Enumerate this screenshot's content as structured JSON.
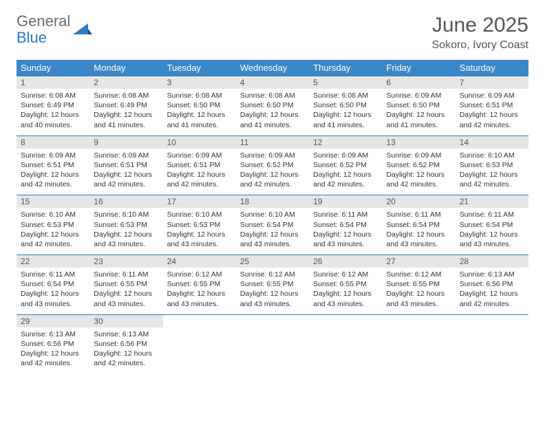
{
  "logo": {
    "line1": "General",
    "line2": "Blue"
  },
  "title": "June 2025",
  "subtitle": "Sokoro, Ivory Coast",
  "colors": {
    "header_bg": "#3a87c8",
    "border": "#3a7bb0",
    "daynum_bg": "#e6e6e6",
    "text": "#333333",
    "title_text": "#555555"
  },
  "weekdays": [
    "Sunday",
    "Monday",
    "Tuesday",
    "Wednesday",
    "Thursday",
    "Friday",
    "Saturday"
  ],
  "days": [
    {
      "n": 1,
      "sr": "6:08 AM",
      "ss": "6:49 PM",
      "dl": "12 hours and 40 minutes."
    },
    {
      "n": 2,
      "sr": "6:08 AM",
      "ss": "6:49 PM",
      "dl": "12 hours and 41 minutes."
    },
    {
      "n": 3,
      "sr": "6:08 AM",
      "ss": "6:50 PM",
      "dl": "12 hours and 41 minutes."
    },
    {
      "n": 4,
      "sr": "6:08 AM",
      "ss": "6:50 PM",
      "dl": "12 hours and 41 minutes."
    },
    {
      "n": 5,
      "sr": "6:08 AM",
      "ss": "6:50 PM",
      "dl": "12 hours and 41 minutes."
    },
    {
      "n": 6,
      "sr": "6:09 AM",
      "ss": "6:50 PM",
      "dl": "12 hours and 41 minutes."
    },
    {
      "n": 7,
      "sr": "6:09 AM",
      "ss": "6:51 PM",
      "dl": "12 hours and 42 minutes."
    },
    {
      "n": 8,
      "sr": "6:09 AM",
      "ss": "6:51 PM",
      "dl": "12 hours and 42 minutes."
    },
    {
      "n": 9,
      "sr": "6:09 AM",
      "ss": "6:51 PM",
      "dl": "12 hours and 42 minutes."
    },
    {
      "n": 10,
      "sr": "6:09 AM",
      "ss": "6:51 PM",
      "dl": "12 hours and 42 minutes."
    },
    {
      "n": 11,
      "sr": "6:09 AM",
      "ss": "6:52 PM",
      "dl": "12 hours and 42 minutes."
    },
    {
      "n": 12,
      "sr": "6:09 AM",
      "ss": "6:52 PM",
      "dl": "12 hours and 42 minutes."
    },
    {
      "n": 13,
      "sr": "6:09 AM",
      "ss": "6:52 PM",
      "dl": "12 hours and 42 minutes."
    },
    {
      "n": 14,
      "sr": "6:10 AM",
      "ss": "6:53 PM",
      "dl": "12 hours and 42 minutes."
    },
    {
      "n": 15,
      "sr": "6:10 AM",
      "ss": "6:53 PM",
      "dl": "12 hours and 42 minutes."
    },
    {
      "n": 16,
      "sr": "6:10 AM",
      "ss": "6:53 PM",
      "dl": "12 hours and 43 minutes."
    },
    {
      "n": 17,
      "sr": "6:10 AM",
      "ss": "6:53 PM",
      "dl": "12 hours and 43 minutes."
    },
    {
      "n": 18,
      "sr": "6:10 AM",
      "ss": "6:54 PM",
      "dl": "12 hours and 43 minutes."
    },
    {
      "n": 19,
      "sr": "6:11 AM",
      "ss": "6:54 PM",
      "dl": "12 hours and 43 minutes."
    },
    {
      "n": 20,
      "sr": "6:11 AM",
      "ss": "6:54 PM",
      "dl": "12 hours and 43 minutes."
    },
    {
      "n": 21,
      "sr": "6:11 AM",
      "ss": "6:54 PM",
      "dl": "12 hours and 43 minutes."
    },
    {
      "n": 22,
      "sr": "6:11 AM",
      "ss": "6:54 PM",
      "dl": "12 hours and 43 minutes."
    },
    {
      "n": 23,
      "sr": "6:11 AM",
      "ss": "6:55 PM",
      "dl": "12 hours and 43 minutes."
    },
    {
      "n": 24,
      "sr": "6:12 AM",
      "ss": "6:55 PM",
      "dl": "12 hours and 43 minutes."
    },
    {
      "n": 25,
      "sr": "6:12 AM",
      "ss": "6:55 PM",
      "dl": "12 hours and 43 minutes."
    },
    {
      "n": 26,
      "sr": "6:12 AM",
      "ss": "6:55 PM",
      "dl": "12 hours and 43 minutes."
    },
    {
      "n": 27,
      "sr": "6:12 AM",
      "ss": "6:55 PM",
      "dl": "12 hours and 43 minutes."
    },
    {
      "n": 28,
      "sr": "6:13 AM",
      "ss": "6:56 PM",
      "dl": "12 hours and 42 minutes."
    },
    {
      "n": 29,
      "sr": "6:13 AM",
      "ss": "6:56 PM",
      "dl": "12 hours and 42 minutes."
    },
    {
      "n": 30,
      "sr": "6:13 AM",
      "ss": "6:56 PM",
      "dl": "12 hours and 42 minutes."
    }
  ],
  "labels": {
    "sunrise": "Sunrise:",
    "sunset": "Sunset:",
    "daylight": "Daylight:"
  }
}
